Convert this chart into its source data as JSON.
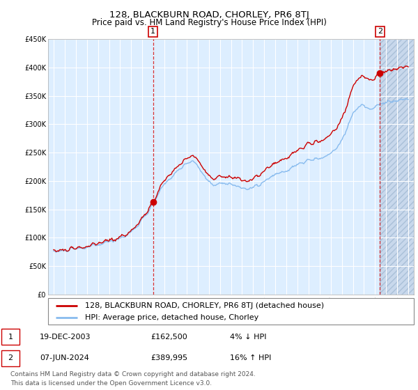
{
  "title": "128, BLACKBURN ROAD, CHORLEY, PR6 8TJ",
  "subtitle": "Price paid vs. HM Land Registry's House Price Index (HPI)",
  "legend_line1": "128, BLACKBURN ROAD, CHORLEY, PR6 8TJ (detached house)",
  "legend_line2": "HPI: Average price, detached house, Chorley",
  "table_row1_date": "19-DEC-2003",
  "table_row1_price": "£162,500",
  "table_row1_hpi": "4% ↓ HPI",
  "table_row2_date": "07-JUN-2024",
  "table_row2_price": "£389,995",
  "table_row2_hpi": "16% ↑ HPI",
  "footer": "Contains HM Land Registry data © Crown copyright and database right 2024.\nThis data is licensed under the Open Government Licence v3.0.",
  "plot_bg_color": "#ddeeff",
  "hatch_bg_color": "#c8d8ec",
  "grid_color": "#ffffff",
  "hpi_line_color": "#88bbee",
  "price_line_color": "#cc0000",
  "marker_color": "#cc0000",
  "vline_color": "#cc0000",
  "point1_x": 2003.97,
  "point1_y": 162500,
  "point2_x": 2024.44,
  "point2_y": 389995,
  "xmin": 1994.5,
  "xmax": 2027.5,
  "ymin": 0,
  "ymax": 450000,
  "yticks": [
    0,
    50000,
    100000,
    150000,
    200000,
    250000,
    300000,
    350000,
    400000,
    450000
  ],
  "ytick_labels": [
    "£0",
    "£50K",
    "£100K",
    "£150K",
    "£200K",
    "£250K",
    "£300K",
    "£350K",
    "£400K",
    "£450K"
  ],
  "xticks": [
    1995,
    1996,
    1997,
    1998,
    1999,
    2000,
    2001,
    2002,
    2003,
    2004,
    2005,
    2006,
    2007,
    2008,
    2009,
    2010,
    2011,
    2012,
    2013,
    2014,
    2015,
    2016,
    2017,
    2018,
    2019,
    2020,
    2021,
    2022,
    2023,
    2024,
    2025,
    2026,
    2027
  ],
  "title_fontsize": 9.5,
  "subtitle_fontsize": 8.5,
  "tick_fontsize": 7,
  "legend_fontsize": 8,
  "table_fontsize": 8,
  "footer_fontsize": 6.5
}
